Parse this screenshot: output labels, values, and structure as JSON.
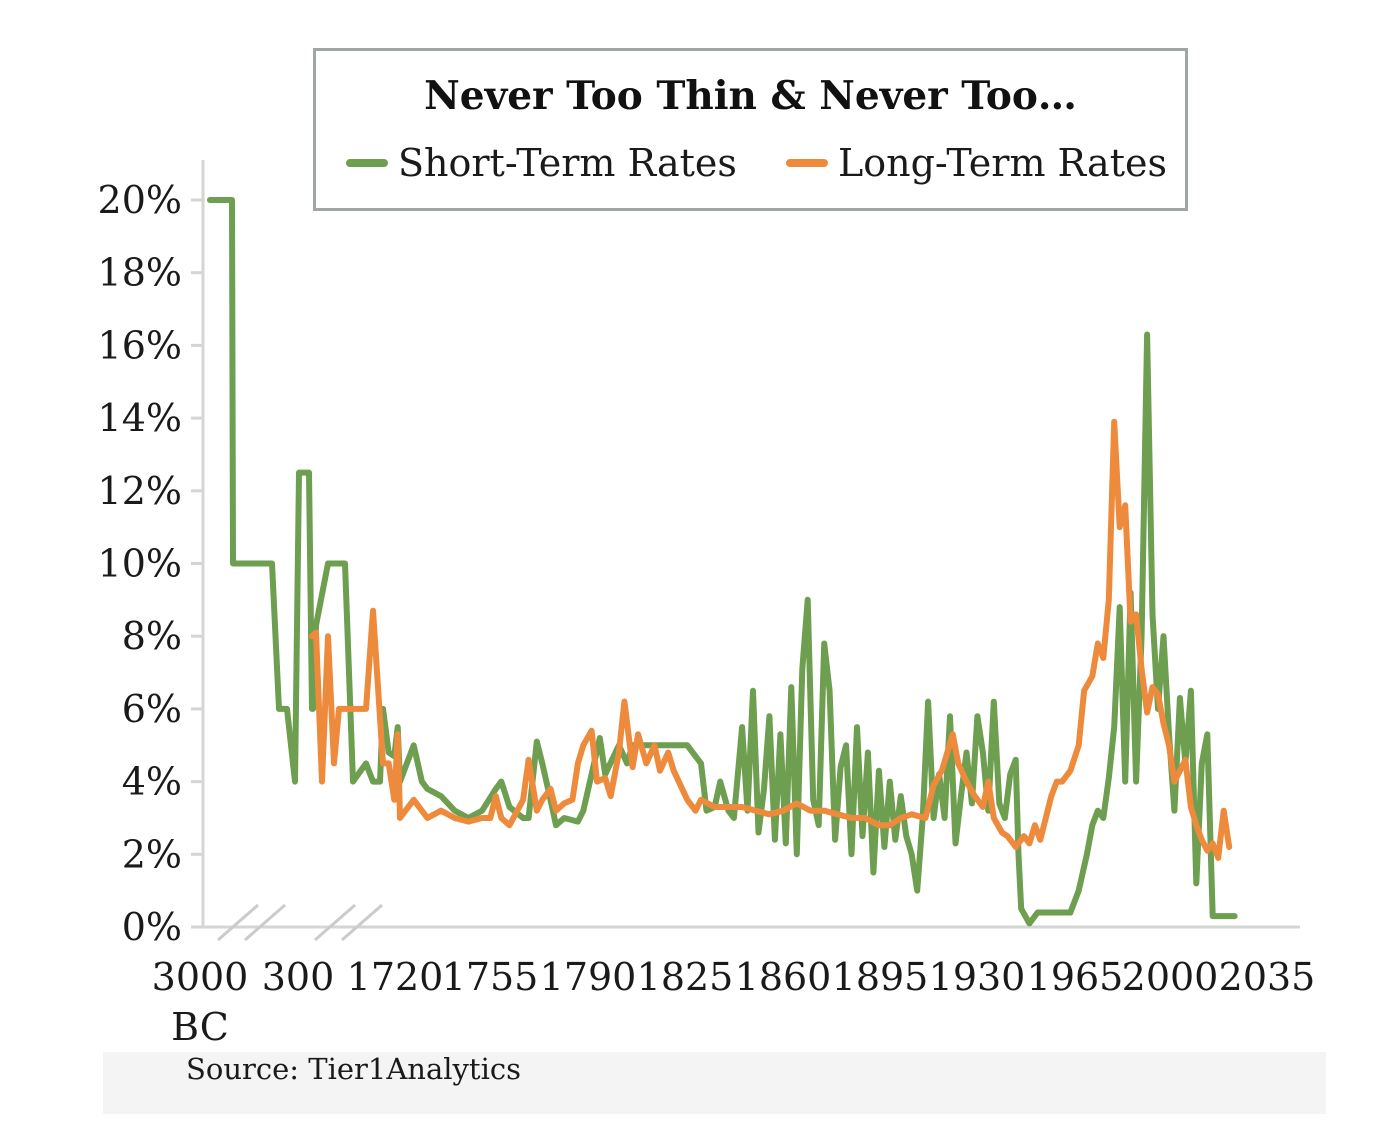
{
  "chart_data": {
    "type": "line",
    "title": "Never Too Thin & Never Too…",
    "xlabel": "",
    "ylabel": "",
    "ylim": [
      0,
      20
    ],
    "legend_position": "top",
    "grid": false,
    "y_ticks": [
      "0%",
      "2%",
      "4%",
      "6%",
      "8%",
      "10%",
      "12%",
      "14%",
      "16%",
      "18%",
      "20%"
    ],
    "x_ticks": [
      "3000 BC",
      "300",
      "1720",
      "1755",
      "1790",
      "1825",
      "1860",
      "1895",
      "1930",
      "1965",
      "2000",
      "2035"
    ],
    "axis_breaks": "between 3000 BC and 300, and between 300 and 1720",
    "series": [
      {
        "name": "Short-Term Rates",
        "color": "#6e9e4f",
        "points": [
          [
            "3000 BC",
            20
          ],
          [
            "3000 BC",
            20
          ],
          [
            "2000 BC",
            20
          ],
          [
            "1800 BC",
            10
          ],
          [
            "1200 BC",
            10
          ],
          [
            "700 BC",
            10
          ],
          [
            "500 BC",
            6
          ],
          [
            "300 BC",
            6
          ],
          [
            "100 BC",
            4
          ],
          [
            "1 AD",
            12.5
          ],
          [
            "100",
            12.5
          ],
          [
            "200",
            12.5
          ],
          [
            "300",
            6
          ],
          [
            "400",
            6
          ],
          [
            "500",
            8.3
          ],
          [
            "700",
            10
          ],
          [
            "1100",
            10
          ],
          [
            "1300",
            4
          ],
          [
            "1500",
            4.5
          ],
          [
            "1600",
            4
          ],
          [
            "1700",
            4
          ],
          [
            "1705",
            6
          ],
          [
            "1710",
            4.8
          ],
          [
            "1715",
            4.7
          ],
          [
            "1718",
            5.5
          ],
          [
            "1720",
            4
          ],
          [
            "1725",
            5
          ],
          [
            "1728",
            4
          ],
          [
            "1730",
            3.8
          ],
          [
            "1735",
            3.6
          ],
          [
            "1740",
            3.2
          ],
          [
            "1745",
            3
          ],
          [
            "1750",
            3.2
          ],
          [
            "1755",
            3.8
          ],
          [
            "1757",
            4
          ],
          [
            "1760",
            3.3
          ],
          [
            "1765",
            3
          ],
          [
            "1767",
            3
          ],
          [
            "1770",
            5.1
          ],
          [
            "1772",
            4.5
          ],
          [
            "1775",
            3.5
          ],
          [
            "1777",
            2.8
          ],
          [
            "1780",
            3
          ],
          [
            "1785",
            2.9
          ],
          [
            "1787",
            3.2
          ],
          [
            "1790",
            4.2
          ],
          [
            "1793",
            5.2
          ],
          [
            "1795",
            4.2
          ],
          [
            "1800",
            5
          ],
          [
            "1803",
            4.5
          ],
          [
            "1805",
            5
          ],
          [
            "1810",
            5
          ],
          [
            "1815",
            5
          ],
          [
            "1820",
            5
          ],
          [
            "1825",
            5
          ],
          [
            "1830",
            4.5
          ],
          [
            "1832",
            3.2
          ],
          [
            "1835",
            3.3
          ],
          [
            "1837",
            4
          ],
          [
            "1840",
            3.2
          ],
          [
            "1842",
            3
          ],
          [
            "1845",
            5.5
          ],
          [
            "1847",
            3.2
          ],
          [
            "1849",
            6.5
          ],
          [
            "1851",
            2.6
          ],
          [
            "1853",
            3.8
          ],
          [
            "1855",
            5.8
          ],
          [
            "1857",
            2.4
          ],
          [
            "1859",
            5.3
          ],
          [
            "1861",
            2.3
          ],
          [
            "1863",
            6.6
          ],
          [
            "1865",
            2
          ],
          [
            "1867",
            7.1
          ],
          [
            "1869",
            9
          ],
          [
            "1871",
            3.5
          ],
          [
            "1873",
            2.8
          ],
          [
            "1875",
            7.8
          ],
          [
            "1877",
            6.5
          ],
          [
            "1879",
            2.4
          ],
          [
            "1881",
            4.4
          ],
          [
            "1883",
            5
          ],
          [
            "1885",
            2
          ],
          [
            "1887",
            5.5
          ],
          [
            "1889",
            2.5
          ],
          [
            "1891",
            4.8
          ],
          [
            "1893",
            1.5
          ],
          [
            "1895",
            4.3
          ],
          [
            "1897",
            2.2
          ],
          [
            "1899",
            4
          ],
          [
            "1901",
            2.4
          ],
          [
            "1903",
            3.6
          ],
          [
            "1905",
            2.5
          ],
          [
            "1907",
            2
          ],
          [
            "1909",
            1
          ],
          [
            "1911",
            3
          ],
          [
            "1913",
            6.2
          ],
          [
            "1915",
            3
          ],
          [
            "1917",
            4.2
          ],
          [
            "1919",
            3
          ],
          [
            "1921",
            5.8
          ],
          [
            "1923",
            2.3
          ],
          [
            "1925",
            3.6
          ],
          [
            "1927",
            4.8
          ],
          [
            "1929",
            3.4
          ],
          [
            "1931",
            5.8
          ],
          [
            "1933",
            4.8
          ],
          [
            "1935",
            3.2
          ],
          [
            "1937",
            6.2
          ],
          [
            "1939",
            3.4
          ],
          [
            "1941",
            3
          ],
          [
            "1943",
            4.2
          ],
          [
            "1945",
            4.6
          ],
          [
            "1946",
            2
          ],
          [
            "1947",
            0.5
          ],
          [
            "1950",
            0.1
          ],
          [
            "1953",
            0.4
          ],
          [
            "1960",
            0.4
          ],
          [
            "1965",
            0.4
          ],
          [
            "1968",
            1
          ],
          [
            "1971",
            2
          ],
          [
            "1973",
            2.8
          ],
          [
            "1975",
            3.2
          ],
          [
            "1977",
            3
          ],
          [
            "1979",
            4.1
          ],
          [
            "1981",
            5.5
          ],
          [
            "1983",
            8.8
          ],
          [
            "1985",
            4
          ],
          [
            "1987",
            9.2
          ],
          [
            "1989",
            4
          ],
          [
            "1991",
            8
          ],
          [
            "1993",
            16.3
          ],
          [
            "1995",
            8.6
          ],
          [
            "1997",
            6
          ],
          [
            "1999",
            8
          ],
          [
            "2001",
            5.3
          ],
          [
            "2003",
            3.2
          ],
          [
            "2005",
            6.3
          ],
          [
            "2007",
            4.5
          ],
          [
            "2009",
            6.5
          ],
          [
            "2011",
            1.2
          ],
          [
            "2013",
            4.5
          ],
          [
            "2015",
            5.3
          ],
          [
            "2017",
            0.3
          ],
          [
            "2020",
            0.3
          ],
          [
            "2025",
            0.3
          ]
        ]
      },
      {
        "name": "Long-Term Rates",
        "color": "#ee8a3c",
        "points": [
          [
            "300",
            8
          ],
          [
            "500",
            8.1
          ],
          [
            "600",
            4
          ],
          [
            "700",
            8
          ],
          [
            "800",
            4.5
          ],
          [
            "900",
            6
          ],
          [
            "1300",
            6
          ],
          [
            "1500",
            6
          ],
          [
            "1600",
            8.7
          ],
          [
            "1705",
            4.5
          ],
          [
            "1710",
            4.5
          ],
          [
            "1715",
            3.5
          ],
          [
            "1718",
            5.3
          ],
          [
            "1720",
            3
          ],
          [
            "1725",
            3.5
          ],
          [
            "1730",
            3
          ],
          [
            "1735",
            3.2
          ],
          [
            "1740",
            3
          ],
          [
            "1745",
            2.9
          ],
          [
            "1750",
            3
          ],
          [
            "1753",
            3
          ],
          [
            "1755",
            3.6
          ],
          [
            "1757",
            3
          ],
          [
            "1760",
            2.8
          ],
          [
            "1765",
            3.5
          ],
          [
            "1767",
            4.6
          ],
          [
            "1770",
            3.2
          ],
          [
            "1772",
            3.5
          ],
          [
            "1775",
            3.8
          ],
          [
            "1777",
            3.2
          ],
          [
            "1780",
            3.4
          ],
          [
            "1783",
            3.5
          ],
          [
            "1785",
            4.5
          ],
          [
            "1787",
            5
          ],
          [
            "1790",
            5.4
          ],
          [
            "1792",
            4
          ],
          [
            "1795",
            4.1
          ],
          [
            "1797",
            3.6
          ],
          [
            "1800",
            4.8
          ],
          [
            "1802",
            6.2
          ],
          [
            "1805",
            4.4
          ],
          [
            "1807",
            5.3
          ],
          [
            "1810",
            4.5
          ],
          [
            "1813",
            5
          ],
          [
            "1815",
            4.3
          ],
          [
            "1818",
            4.8
          ],
          [
            "1820",
            4.3
          ],
          [
            "1825",
            3.5
          ],
          [
            "1828",
            3.2
          ],
          [
            "1830",
            3.5
          ],
          [
            "1835",
            3.3
          ],
          [
            "1840",
            3.3
          ],
          [
            "1845",
            3.3
          ],
          [
            "1850",
            3.2
          ],
          [
            "1855",
            3.1
          ],
          [
            "1860",
            3.2
          ],
          [
            "1865",
            3.4
          ],
          [
            "1870",
            3.2
          ],
          [
            "1875",
            3.2
          ],
          [
            "1880",
            3.1
          ],
          [
            "1885",
            3
          ],
          [
            "1890",
            3
          ],
          [
            "1895",
            2.8
          ],
          [
            "1899",
            2.8
          ],
          [
            "1903",
            3
          ],
          [
            "1907",
            3.1
          ],
          [
            "1912",
            3
          ],
          [
            "1915",
            3.9
          ],
          [
            "1918",
            4.3
          ],
          [
            "1920",
            4.8
          ],
          [
            "1922",
            5.3
          ],
          [
            "1924",
            4.5
          ],
          [
            "1927",
            4
          ],
          [
            "1930",
            3.6
          ],
          [
            "1933",
            3.3
          ],
          [
            "1935",
            4
          ],
          [
            "1937",
            3
          ],
          [
            "1940",
            2.6
          ],
          [
            "1942",
            2.5
          ],
          [
            "1945",
            2.2
          ],
          [
            "1948",
            2.5
          ],
          [
            "1950",
            2.3
          ],
          [
            "1952",
            2.8
          ],
          [
            "1954",
            2.4
          ],
          [
            "1956",
            3
          ],
          [
            "1958",
            3.6
          ],
          [
            "1960",
            4
          ],
          [
            "1962",
            4
          ],
          [
            "1965",
            4.3
          ],
          [
            "1968",
            5
          ],
          [
            "1970",
            6.5
          ],
          [
            "1973",
            6.9
          ],
          [
            "1975",
            7.8
          ],
          [
            "1977",
            7.4
          ],
          [
            "1979",
            9
          ],
          [
            "1981",
            13.9
          ],
          [
            "1983",
            11
          ],
          [
            "1985",
            11.6
          ],
          [
            "1987",
            8.4
          ],
          [
            "1989",
            8.6
          ],
          [
            "1991",
            7.1
          ],
          [
            "1993",
            5.9
          ],
          [
            "1995",
            6.6
          ],
          [
            "1997",
            6.4
          ],
          [
            "1999",
            5.6
          ],
          [
            "2001",
            5
          ],
          [
            "2003",
            4
          ],
          [
            "2005",
            4.3
          ],
          [
            "2007",
            4.6
          ],
          [
            "2009",
            3.3
          ],
          [
            "2011",
            2.8
          ],
          [
            "2013",
            2.4
          ],
          [
            "2015",
            2.1
          ],
          [
            "2017",
            2.3
          ],
          [
            "2019",
            1.9
          ],
          [
            "2021",
            3.2
          ],
          [
            "2023",
            2.2
          ]
        ]
      }
    ]
  },
  "source": "Source: Tier1Analytics"
}
